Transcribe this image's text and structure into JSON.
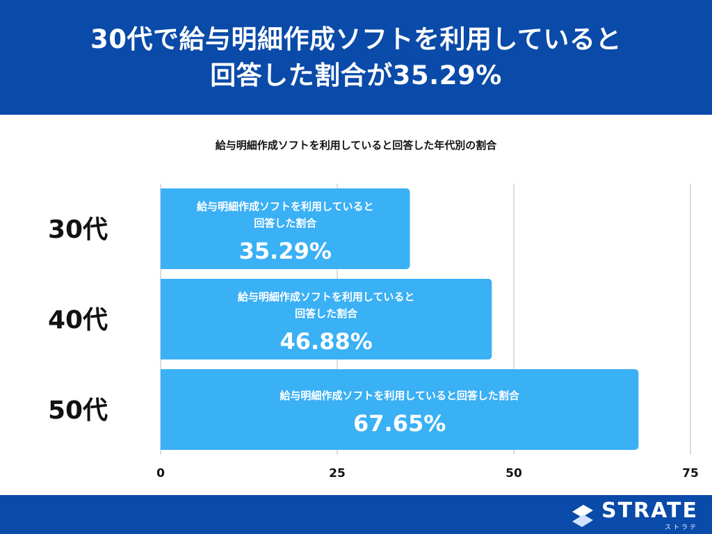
{
  "header": {
    "title_line1": "30代で給与明細作成ソフトを利用していると",
    "title_line2": "回答した割合が35.29%"
  },
  "chart_data": {
    "type": "bar",
    "orientation": "horizontal",
    "title": "給与明細作成ソフトを利用していると回答した年代別の割合",
    "categories": [
      "30代",
      "40代",
      "50代"
    ],
    "values": [
      35.29,
      46.88,
      67.65
    ],
    "value_labels": [
      "35.29%",
      "46.88%",
      "67.65%"
    ],
    "bar_label_lines": [
      [
        "給与明細作成ソフトを利用していると",
        "回答した割合"
      ],
      [
        "給与明細作成ソフトを利用していると",
        "回答した割合"
      ],
      [
        "給与明細作成ソフトを利用していると回答した割合"
      ]
    ],
    "xlim": [
      0,
      75
    ],
    "xticks": [
      0,
      25,
      50,
      75
    ],
    "grid": true,
    "bar_color": "#3ab0f5",
    "xlabel": "",
    "ylabel": ""
  },
  "footer": {
    "brand": "STRATE",
    "brand_sub": "ストラテ"
  },
  "colors": {
    "header_bg": "#0a4aa8",
    "footer_bg": "#0a4aa8",
    "bar": "#3ab0f5",
    "grid": "#d0d0d0",
    "text": "#111111"
  }
}
